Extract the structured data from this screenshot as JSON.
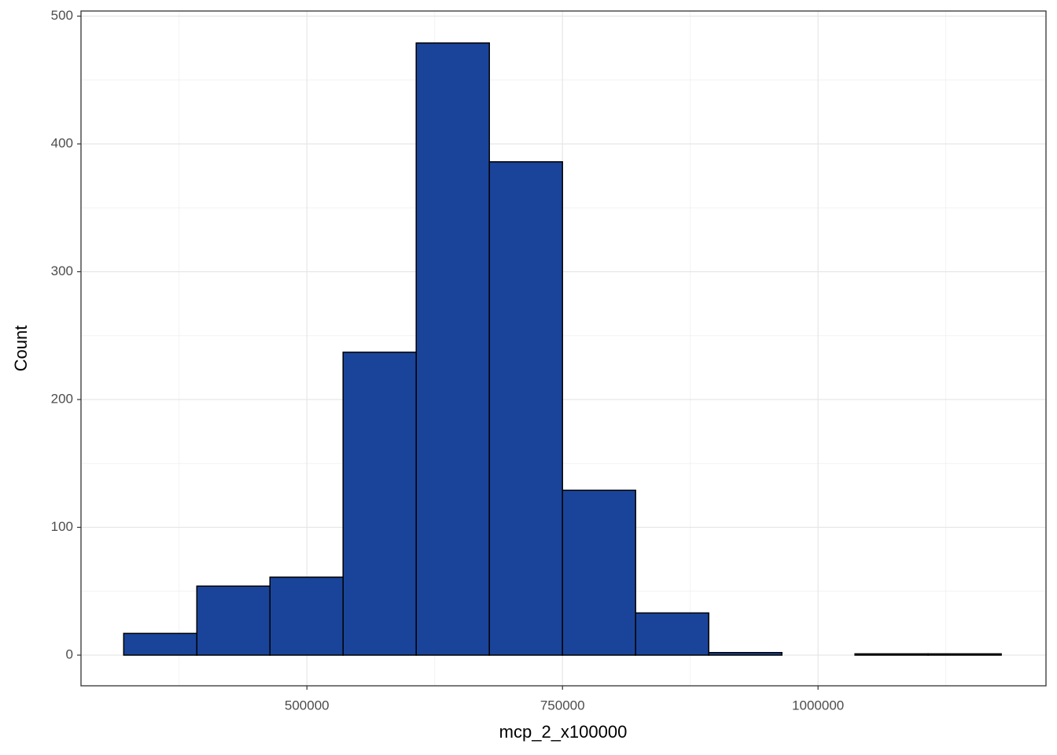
{
  "chart_data": {
    "type": "histogram",
    "x_label": "mcp_2_x100000",
    "y_label": "Count",
    "bins": [
      320769,
      392308,
      463846,
      535385,
      606923,
      678462,
      750000,
      821538,
      893077,
      964615,
      1036154,
      1107692,
      1179231
    ],
    "counts": [
      17,
      54,
      61,
      237,
      479,
      386,
      129,
      33,
      2,
      0,
      1,
      1
    ],
    "color": "#1a4499",
    "edge_color": "#000000",
    "xlim": [
      279000,
      1223000
    ],
    "xticks": [
      500000,
      750000,
      1000000
    ],
    "ylim": [
      -24,
      504
    ],
    "yticks": [
      0,
      100,
      200,
      300,
      400,
      500
    ],
    "grid": true
  }
}
